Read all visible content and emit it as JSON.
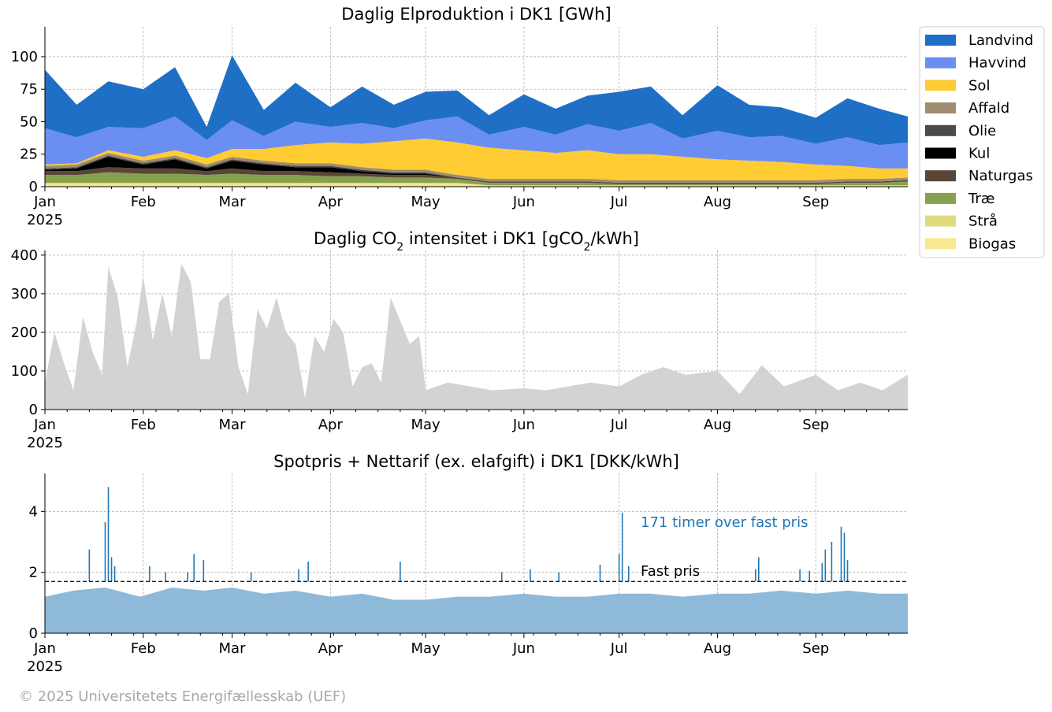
{
  "footer": {
    "copyright": "© 2025 Universitetets Energifællesskab (UEF)"
  },
  "months": [
    "Jan",
    "Feb",
    "Mar",
    "Apr",
    "May",
    "Jun",
    "Jul",
    "Aug",
    "Sep"
  ],
  "year_label": "2025",
  "legend": {
    "items": [
      {
        "label": "Landvind",
        "color": "#1f6fc7"
      },
      {
        "label": "Havvind",
        "color": "#6b8ef2"
      },
      {
        "label": "Sol",
        "color": "#ffcc33"
      },
      {
        "label": "Affald",
        "color": "#a08c6e"
      },
      {
        "label": "Olie",
        "color": "#4a4a4a"
      },
      {
        "label": "Kul",
        "color": "#000000"
      },
      {
        "label": "Naturgas",
        "color": "#5a4638"
      },
      {
        "label": "Træ",
        "color": "#86a050"
      },
      {
        "label": "Strå",
        "color": "#e0dc7c"
      },
      {
        "label": "Biogas",
        "color": "#f8e890"
      }
    ]
  },
  "chart_data": [
    {
      "type": "area",
      "title_html": "Daglig Elproduktion i DK1 [GWh]",
      "x_range": [
        "2025-01-01",
        "2025-09-30"
      ],
      "ylim": [
        0,
        123
      ],
      "yticks": [
        0,
        25,
        50,
        75,
        100
      ],
      "grid": true,
      "legend_placement": "outside-right",
      "stacked": true,
      "x_dates": [
        "2025-01-01",
        "2025-01-11",
        "2025-01-21",
        "2025-02-01",
        "2025-02-11",
        "2025-02-21",
        "2025-03-01",
        "2025-03-11",
        "2025-03-21",
        "2025-04-01",
        "2025-04-11",
        "2025-04-21",
        "2025-05-01",
        "2025-05-11",
        "2025-05-21",
        "2025-06-01",
        "2025-06-11",
        "2025-06-21",
        "2025-07-01",
        "2025-07-11",
        "2025-07-21",
        "2025-08-01",
        "2025-08-11",
        "2025-08-21",
        "2025-09-01",
        "2025-09-11",
        "2025-09-21",
        "2025-09-30"
      ],
      "series": [
        {
          "name": "Biogas",
          "values": [
            2,
            2,
            2,
            2,
            2,
            2,
            2,
            2,
            2,
            2,
            2,
            2,
            2,
            2,
            1,
            1,
            1,
            1,
            1,
            1,
            1,
            1,
            1,
            1,
            1,
            1,
            1,
            1
          ]
        },
        {
          "name": "Strå",
          "values": [
            1,
            1,
            1,
            1,
            1,
            1,
            1,
            1,
            1,
            1,
            1,
            1,
            1,
            1,
            0,
            0,
            0,
            0,
            0,
            0,
            0,
            0,
            0,
            0,
            0,
            0,
            0,
            0
          ]
        },
        {
          "name": "Træ",
          "values": [
            6,
            6,
            8,
            7,
            7,
            6,
            7,
            6,
            6,
            5,
            5,
            4,
            4,
            3,
            2,
            2,
            2,
            2,
            1,
            1,
            1,
            1,
            1,
            1,
            1,
            2,
            2,
            3
          ]
        },
        {
          "name": "Naturgas",
          "values": [
            3,
            3,
            4,
            4,
            4,
            3,
            4,
            3,
            3,
            3,
            2,
            2,
            2,
            1,
            1,
            1,
            1,
            1,
            1,
            1,
            1,
            1,
            1,
            1,
            1,
            1,
            1,
            1
          ]
        },
        {
          "name": "Kul",
          "values": [
            1,
            2,
            8,
            3,
            7,
            2,
            6,
            5,
            3,
            4,
            2,
            1,
            1,
            0,
            0,
            0,
            0,
            0,
            0,
            0,
            0,
            0,
            0,
            0,
            0,
            0,
            0,
            0
          ]
        },
        {
          "name": "Olie",
          "values": [
            1,
            1,
            1,
            1,
            1,
            1,
            1,
            1,
            1,
            1,
            1,
            1,
            1,
            0,
            0,
            0,
            0,
            0,
            0,
            0,
            0,
            0,
            0,
            0,
            0,
            0,
            0,
            0
          ]
        },
        {
          "name": "Affald",
          "values": [
            2,
            2,
            2,
            2,
            2,
            2,
            2,
            2,
            2,
            2,
            2,
            2,
            2,
            2,
            2,
            2,
            2,
            2,
            2,
            2,
            2,
            2,
            2,
            2,
            2,
            2,
            2,
            2
          ]
        },
        {
          "name": "Sol",
          "values": [
            1,
            1,
            2,
            3,
            4,
            5,
            6,
            9,
            14,
            16,
            18,
            22,
            24,
            25,
            24,
            22,
            20,
            22,
            20,
            20,
            18,
            16,
            15,
            14,
            12,
            10,
            8,
            7
          ]
        },
        {
          "name": "Havvind",
          "values": [
            28,
            20,
            18,
            22,
            26,
            14,
            22,
            10,
            18,
            12,
            16,
            10,
            14,
            20,
            10,
            18,
            14,
            20,
            18,
            24,
            14,
            22,
            18,
            20,
            16,
            22,
            18,
            20
          ]
        },
        {
          "name": "Landvind",
          "values": [
            45,
            25,
            35,
            30,
            38,
            10,
            50,
            20,
            30,
            15,
            28,
            18,
            22,
            20,
            15,
            25,
            20,
            22,
            30,
            28,
            18,
            35,
            25,
            22,
            20,
            30,
            28,
            20
          ]
        }
      ]
    },
    {
      "type": "area",
      "title_html": "Daglig CO<tspan baseline-shift='sub' font-size='14'>2</tspan> intensitet i DK1 [gCO<tspan baseline-shift='sub' font-size='14'>2</tspan>/kWh]",
      "x_range": [
        "2025-01-01",
        "2025-09-30"
      ],
      "ylim": [
        0,
        412
      ],
      "yticks": [
        0,
        100,
        200,
        300,
        400
      ],
      "grid": true,
      "color": "#d3d3d3",
      "x_dates": [
        "2025-01-01",
        "2025-01-04",
        "2025-01-07",
        "2025-01-10",
        "2025-01-13",
        "2025-01-16",
        "2025-01-19",
        "2025-01-21",
        "2025-01-24",
        "2025-01-27",
        "2025-01-30",
        "2025-02-01",
        "2025-02-04",
        "2025-02-07",
        "2025-02-10",
        "2025-02-13",
        "2025-02-16",
        "2025-02-19",
        "2025-02-22",
        "2025-02-25",
        "2025-02-28",
        "2025-03-03",
        "2025-03-06",
        "2025-03-09",
        "2025-03-12",
        "2025-03-15",
        "2025-03-18",
        "2025-03-21",
        "2025-03-24",
        "2025-03-27",
        "2025-03-30",
        "2025-04-02",
        "2025-04-05",
        "2025-04-08",
        "2025-04-11",
        "2025-04-14",
        "2025-04-17",
        "2025-04-20",
        "2025-04-23",
        "2025-04-26",
        "2025-04-29",
        "2025-05-01",
        "2025-05-08",
        "2025-05-15",
        "2025-05-22",
        "2025-06-01",
        "2025-06-08",
        "2025-06-15",
        "2025-06-22",
        "2025-07-01",
        "2025-07-08",
        "2025-07-15",
        "2025-07-22",
        "2025-08-01",
        "2025-08-08",
        "2025-08-15",
        "2025-08-22",
        "2025-09-01",
        "2025-09-08",
        "2025-09-15",
        "2025-09-22",
        "2025-09-30"
      ],
      "values": [
        70,
        200,
        120,
        50,
        240,
        150,
        90,
        370,
        290,
        110,
        230,
        345,
        180,
        300,
        190,
        378,
        330,
        130,
        130,
        280,
        300,
        110,
        40,
        260,
        210,
        290,
        200,
        170,
        30,
        190,
        150,
        235,
        200,
        60,
        110,
        120,
        70,
        290,
        230,
        170,
        190,
        50,
        70,
        60,
        50,
        55,
        50,
        60,
        70,
        60,
        90,
        110,
        90,
        100,
        40,
        115,
        60,
        90,
        50,
        70,
        50,
        90
      ]
    },
    {
      "type": "area",
      "title_html": "Spotpris + Nettarif (ex. elafgift) i DK1 [DKK/kWh]",
      "x_range": [
        "2025-01-01",
        "2025-09-30"
      ],
      "ylim": [
        0,
        5.25
      ],
      "yticks": [
        0,
        2,
        4
      ],
      "grid": true,
      "color": "#8fb9d9",
      "spike_color": "#1f77b4",
      "fixed_price": 1.7,
      "fixed_price_label": "Fast pris",
      "hours_over_label": "171 timer over fast pris",
      "x_dates": [
        "2025-01-01",
        "2025-01-10",
        "2025-01-20",
        "2025-01-31",
        "2025-02-10",
        "2025-02-20",
        "2025-03-01",
        "2025-03-11",
        "2025-03-21",
        "2025-04-01",
        "2025-04-11",
        "2025-04-21",
        "2025-05-01",
        "2025-05-11",
        "2025-05-21",
        "2025-06-01",
        "2025-06-11",
        "2025-06-21",
        "2025-07-01",
        "2025-07-11",
        "2025-07-21",
        "2025-08-01",
        "2025-08-11",
        "2025-08-21",
        "2025-09-01",
        "2025-09-11",
        "2025-09-21",
        "2025-09-30"
      ],
      "values": [
        1.2,
        1.4,
        1.5,
        1.2,
        1.5,
        1.4,
        1.5,
        1.3,
        1.4,
        1.2,
        1.3,
        1.1,
        1.1,
        1.2,
        1.2,
        1.3,
        1.2,
        1.2,
        1.3,
        1.3,
        1.2,
        1.3,
        1.3,
        1.4,
        1.3,
        1.4,
        1.3,
        1.3
      ],
      "spikes": [
        {
          "date": "2025-01-15",
          "value": 2.75
        },
        {
          "date": "2025-01-20",
          "value": 3.65
        },
        {
          "date": "2025-01-21",
          "value": 4.8
        },
        {
          "date": "2025-01-22",
          "value": 2.5
        },
        {
          "date": "2025-01-23",
          "value": 2.2
        },
        {
          "date": "2025-02-03",
          "value": 2.2
        },
        {
          "date": "2025-02-08",
          "value": 2.0
        },
        {
          "date": "2025-02-15",
          "value": 2.0
        },
        {
          "date": "2025-02-17",
          "value": 2.6
        },
        {
          "date": "2025-02-20",
          "value": 2.4
        },
        {
          "date": "2025-03-07",
          "value": 2.0
        },
        {
          "date": "2025-03-22",
          "value": 2.1
        },
        {
          "date": "2025-03-25",
          "value": 2.35
        },
        {
          "date": "2025-04-23",
          "value": 2.35
        },
        {
          "date": "2025-05-25",
          "value": 2.0
        },
        {
          "date": "2025-06-03",
          "value": 2.1
        },
        {
          "date": "2025-06-12",
          "value": 2.0
        },
        {
          "date": "2025-06-25",
          "value": 2.25
        },
        {
          "date": "2025-07-01",
          "value": 2.6
        },
        {
          "date": "2025-07-02",
          "value": 3.95
        },
        {
          "date": "2025-07-04",
          "value": 2.2
        },
        {
          "date": "2025-08-13",
          "value": 2.1
        },
        {
          "date": "2025-08-14",
          "value": 2.5
        },
        {
          "date": "2025-08-27",
          "value": 2.1
        },
        {
          "date": "2025-08-30",
          "value": 2.05
        },
        {
          "date": "2025-09-03",
          "value": 2.3
        },
        {
          "date": "2025-09-04",
          "value": 2.75
        },
        {
          "date": "2025-09-06",
          "value": 3.0
        },
        {
          "date": "2025-09-09",
          "value": 3.5
        },
        {
          "date": "2025-09-10",
          "value": 3.3
        },
        {
          "date": "2025-09-11",
          "value": 2.4
        }
      ]
    }
  ]
}
